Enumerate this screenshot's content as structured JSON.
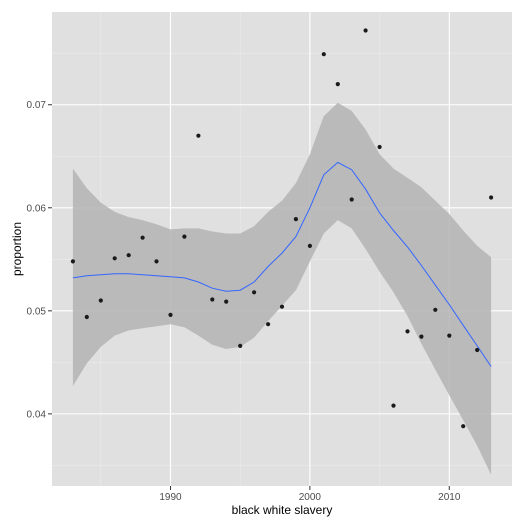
{
  "chart_data": {
    "type": "scatter",
    "title": "",
    "xlabel": "black white slavery",
    "ylabel": "proportion",
    "xlim": [
      1981.5,
      2014.5
    ],
    "ylim": [
      0.033,
      0.079
    ],
    "x_ticks": [
      1990,
      2000,
      2010
    ],
    "x_tick_labels": [
      "1990",
      "2000",
      "2010"
    ],
    "y_ticks": [
      0.04,
      0.05,
      0.06,
      0.07
    ],
    "y_tick_labels": [
      "0.04",
      "0.05",
      "0.06",
      "0.07"
    ],
    "grid": true,
    "legend": "none",
    "colors": {
      "panel": "#e0e0e0",
      "grid_major": "#ffffff",
      "grid_minor": "#ebebeb",
      "points": "#1a1a1a",
      "smooth_line": "#3366ff",
      "ribbon": "#b3b3b3"
    },
    "points": {
      "x": [
        1983,
        1984,
        1985,
        1986,
        1987,
        1988,
        1989,
        1990,
        1991,
        1992,
        1993,
        1994,
        1995,
        1996,
        1997,
        1998,
        1999,
        2000,
        2001,
        2002,
        2003,
        2004,
        2005,
        2006,
        2007,
        2008,
        2009,
        2010,
        2011,
        2012,
        2013
      ],
      "y": [
        0.0548,
        0.0494,
        0.051,
        0.0551,
        0.0554,
        0.0571,
        0.0548,
        0.0496,
        0.0572,
        0.067,
        0.0511,
        0.0509,
        0.0466,
        0.0518,
        0.0487,
        0.0504,
        0.0589,
        0.0563,
        0.0749,
        0.072,
        0.0608,
        0.0772,
        0.0659,
        0.0408,
        0.048,
        0.0475,
        0.0501,
        0.0476,
        0.0388,
        0.0462,
        0.061
      ]
    },
    "smooth": {
      "x": [
        1983,
        1984,
        1985,
        1986,
        1987,
        1988,
        1989,
        1990,
        1991,
        1992,
        1993,
        1994,
        1995,
        1996,
        1997,
        1998,
        1999,
        2000,
        2001,
        2002,
        2003,
        2004,
        2005,
        2006,
        2007,
        2008,
        2009,
        2010,
        2011,
        2012,
        2013
      ],
      "y": [
        0.0532,
        0.0534,
        0.0535,
        0.0536,
        0.0536,
        0.0535,
        0.0534,
        0.0533,
        0.0532,
        0.0528,
        0.0522,
        0.0519,
        0.052,
        0.0528,
        0.0543,
        0.0556,
        0.0572,
        0.06,
        0.0632,
        0.0644,
        0.0637,
        0.0618,
        0.0595,
        0.0578,
        0.0562,
        0.0544,
        0.0525,
        0.0506,
        0.0486,
        0.0466,
        0.0446
      ],
      "lower": [
        0.0427,
        0.0449,
        0.0465,
        0.0476,
        0.0481,
        0.0483,
        0.0485,
        0.0487,
        0.0484,
        0.0476,
        0.0467,
        0.0463,
        0.0465,
        0.0474,
        0.049,
        0.0505,
        0.052,
        0.0548,
        0.0575,
        0.0588,
        0.058,
        0.056,
        0.0538,
        0.0518,
        0.0495,
        0.0468,
        0.0443,
        0.0418,
        0.0394,
        0.0369,
        0.0341
      ],
      "upper": [
        0.0638,
        0.0619,
        0.0605,
        0.0596,
        0.0591,
        0.0588,
        0.0584,
        0.0579,
        0.058,
        0.058,
        0.0577,
        0.0575,
        0.0575,
        0.0582,
        0.0596,
        0.0607,
        0.0624,
        0.0652,
        0.0689,
        0.0702,
        0.0694,
        0.0676,
        0.0652,
        0.0638,
        0.0629,
        0.062,
        0.0607,
        0.0594,
        0.0578,
        0.0563,
        0.0552
      ]
    }
  }
}
